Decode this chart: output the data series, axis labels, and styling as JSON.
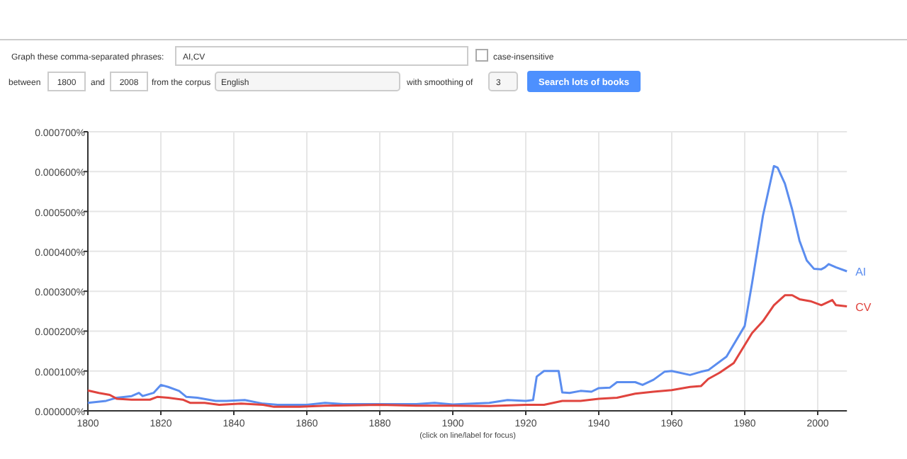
{
  "chart_data": {
    "type": "line",
    "xlim": [
      1800,
      2008
    ],
    "xticks": [
      1800,
      1820,
      1840,
      1860,
      1880,
      1900,
      1920,
      1940,
      1960,
      1980,
      2000
    ],
    "ylim": [
      0,
      0.0007
    ],
    "yticks": [
      {
        "value": 0,
        "label": "0.000000%"
      },
      {
        "value": 0.0001,
        "label": "0.000100%"
      },
      {
        "value": 0.0002,
        "label": "0.000200%"
      },
      {
        "value": 0.0003,
        "label": "0.000300%"
      },
      {
        "value": 0.0004,
        "label": "0.000400%"
      },
      {
        "value": 0.0005,
        "label": "0.000500%"
      },
      {
        "value": 0.0006,
        "label": "0.000600%"
      },
      {
        "value": 0.0007,
        "label": "0.000700%"
      }
    ],
    "grid": true,
    "legend": false,
    "series": [
      {
        "name": "AI",
        "color": "#5b8def",
        "x": [
          1800,
          1805,
          1808,
          1812,
          1814,
          1815,
          1818,
          1820,
          1822,
          1825,
          1827,
          1830,
          1835,
          1838,
          1843,
          1848,
          1852,
          1860,
          1865,
          1870,
          1880,
          1890,
          1895,
          1900,
          1910,
          1915,
          1920,
          1922,
          1923,
          1925,
          1929,
          1930,
          1932,
          1935,
          1938,
          1940,
          1943,
          1945,
          1950,
          1952,
          1955,
          1958,
          1960,
          1965,
          1968,
          1970,
          1975,
          1980,
          1982,
          1985,
          1988,
          1989,
          1991,
          1993,
          1995,
          1997,
          1999,
          2001,
          2002,
          2003,
          2005,
          2008
        ],
        "values": [
          2e-05,
          2.5e-05,
          3.3e-05,
          3.7e-05,
          4.5e-05,
          3.7e-05,
          4.5e-05,
          6.5e-05,
          6e-05,
          5e-05,
          3.5e-05,
          3.3e-05,
          2.5e-05,
          2.5e-05,
          2.7e-05,
          1.8e-05,
          1.5e-05,
          1.5e-05,
          2e-05,
          1.7e-05,
          1.7e-05,
          1.7e-05,
          2e-05,
          1.6e-05,
          2e-05,
          2.7e-05,
          2.5e-05,
          2.7e-05,
          8.6e-05,
          0.0001,
          0.0001,
          4.6e-05,
          4.5e-05,
          5e-05,
          4.8e-05,
          5.7e-05,
          5.8e-05,
          7.2e-05,
          7.2e-05,
          6.5e-05,
          7.8e-05,
          9.8e-05,
          0.0001,
          9e-05,
          9.8e-05,
          0.000102,
          0.000136,
          0.000213,
          0.00032,
          0.00049,
          0.000614,
          0.00061,
          0.00057,
          0.000505,
          0.000427,
          0.000377,
          0.000356,
          0.000355,
          0.00036,
          0.000368,
          0.00036,
          0.00035
        ]
      },
      {
        "name": "CV",
        "color": "#e0443e",
        "x": [
          1800,
          1803,
          1806,
          1808,
          1812,
          1817,
          1819,
          1822,
          1826,
          1828,
          1832,
          1836,
          1842,
          1848,
          1851,
          1858,
          1865,
          1880,
          1890,
          1900,
          1910,
          1920,
          1925,
          1930,
          1935,
          1940,
          1945,
          1950,
          1955,
          1960,
          1965,
          1968,
          1970,
          1973,
          1977,
          1979,
          1982,
          1985,
          1988,
          1991,
          1993,
          1995,
          1998,
          2001,
          2004,
          2005,
          2008
        ],
        "values": [
          5.1e-05,
          4.5e-05,
          4e-05,
          3e-05,
          2.8e-05,
          2.8e-05,
          3.5e-05,
          3.3e-05,
          2.8e-05,
          2e-05,
          2e-05,
          1.5e-05,
          1.8e-05,
          1.5e-05,
          1e-05,
          1e-05,
          1.3e-05,
          1.5e-05,
          1.3e-05,
          1.3e-05,
          1.2e-05,
          1.5e-05,
          1.5e-05,
          2.5e-05,
          2.5e-05,
          3e-05,
          3.3e-05,
          4.3e-05,
          4.8e-05,
          5.2e-05,
          6e-05,
          6.2e-05,
          8e-05,
          9.5e-05,
          0.00012,
          0.00015,
          0.000195,
          0.000225,
          0.000265,
          0.00029,
          0.00029,
          0.00028,
          0.000275,
          0.000265,
          0.000278,
          0.000265,
          0.000262
        ]
      }
    ],
    "annotations": [
      "Graph these comma-separated phrases:",
      "AI,CV",
      "case-insensitive",
      "between",
      "1800",
      "and",
      "2008",
      "from the corpus",
      "English",
      "with smoothing of",
      "3",
      "Search lots of books",
      "(click on line/label for focus)"
    ]
  }
}
